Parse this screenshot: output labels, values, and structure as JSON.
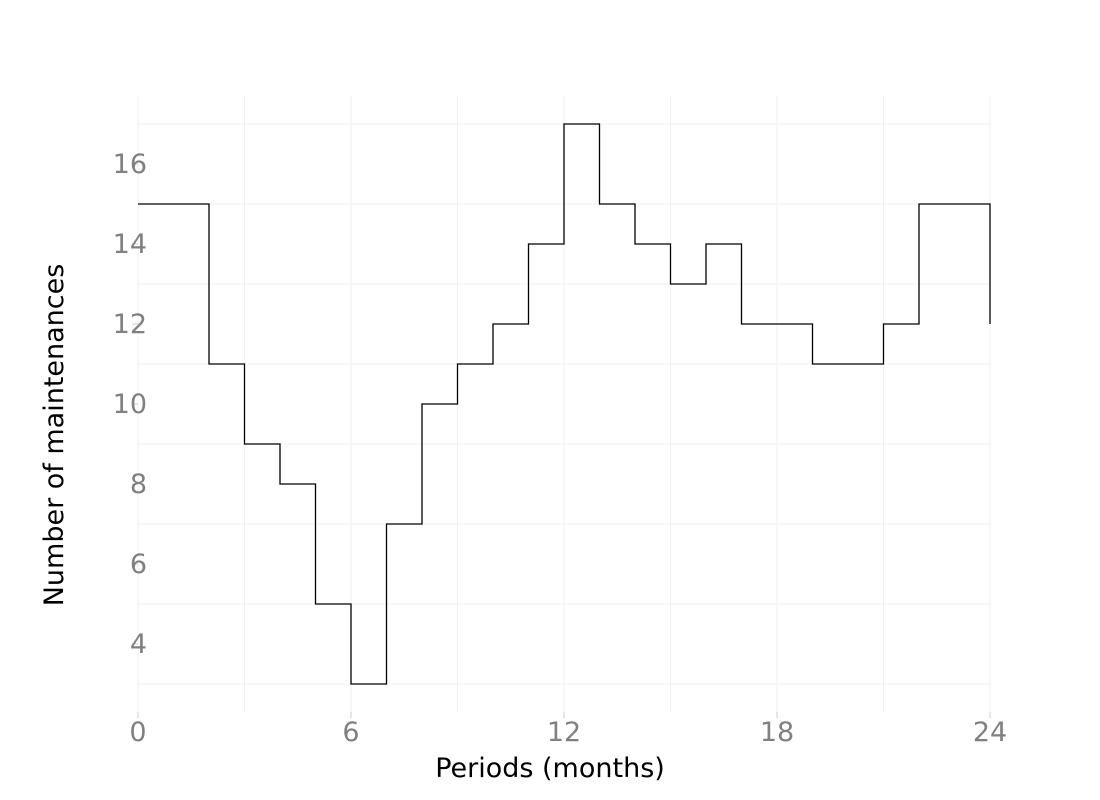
{
  "chart_data": {
    "type": "line",
    "style": "step-post",
    "xlabel": "Periods (months)",
    "ylabel": "Number of maintenances",
    "xlim": [
      0,
      24
    ],
    "ylim": [
      2.5,
      17.5
    ],
    "grid": true,
    "x_ticks": [
      0,
      6,
      12,
      18,
      24
    ],
    "x_tick_labels": [
      "0",
      "6",
      "12",
      "18",
      "24"
    ],
    "y_ticks": [
      4,
      6,
      8,
      10,
      12,
      14,
      16
    ],
    "y_tick_labels": [
      "4",
      "6",
      "8",
      "10",
      "12",
      "14",
      "16"
    ],
    "series": [
      {
        "color": "#000000",
        "x": [
          0,
          1,
          2,
          3,
          4,
          5,
          6,
          7,
          8,
          9,
          10,
          11,
          12,
          13,
          14,
          15,
          16,
          17,
          18,
          19,
          20,
          21,
          22,
          23,
          24
        ],
        "y": [
          15,
          15,
          11,
          9,
          8,
          5,
          3,
          7,
          10,
          11,
          12,
          14,
          17,
          15,
          14,
          13,
          14,
          12,
          12,
          11,
          11,
          12,
          15,
          15,
          12
        ]
      }
    ]
  }
}
